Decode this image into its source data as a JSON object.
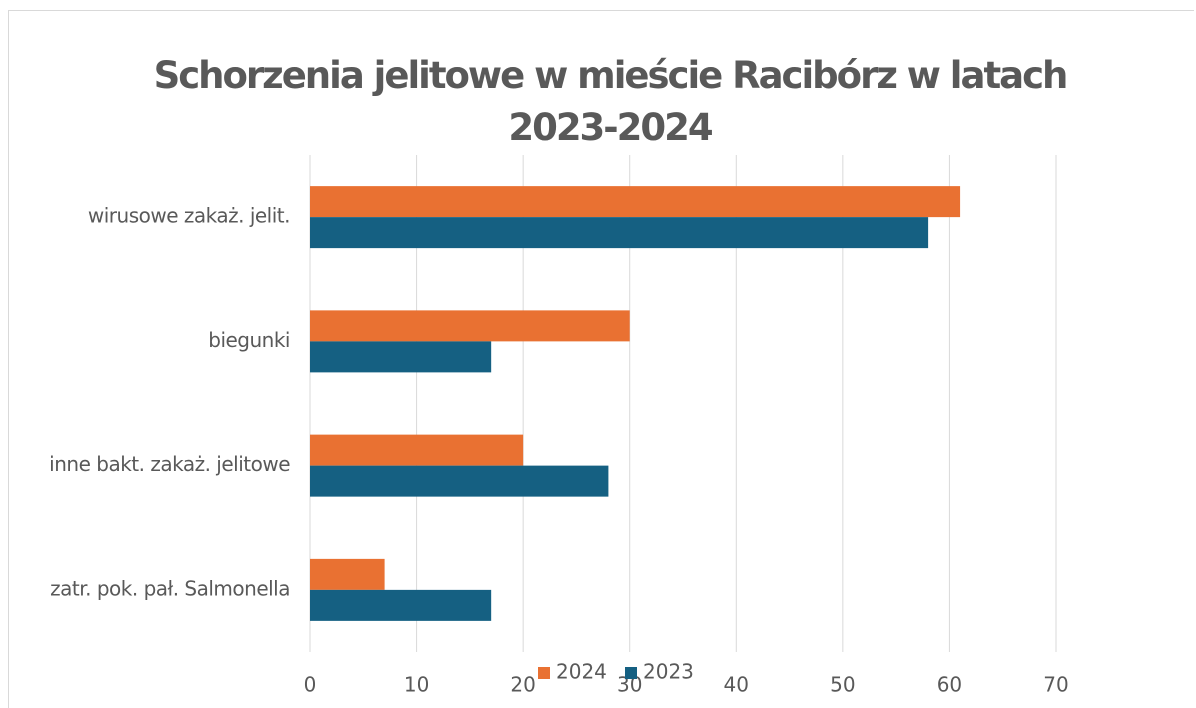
{
  "chart_data": {
    "type": "hbar",
    "title": "Schorzenia jelitowe w mieście Racibórz w latach 2023-2024",
    "categories": [
      "wirusowe zakaż. jelit.",
      "biegunki",
      "inne bakt. zakaż. jelitowe",
      "zatr. pok. pał. Salmonella"
    ],
    "series": [
      {
        "name": "2024",
        "color": "#e97132",
        "values": [
          61,
          30,
          20,
          7
        ]
      },
      {
        "name": "2023",
        "color": "#156082",
        "values": [
          58,
          17,
          28,
          17
        ]
      }
    ],
    "xlim": [
      0,
      70
    ],
    "xticks": [
      0,
      10,
      20,
      30,
      40,
      50,
      60,
      70
    ],
    "grid": true,
    "legend": "bottom"
  }
}
